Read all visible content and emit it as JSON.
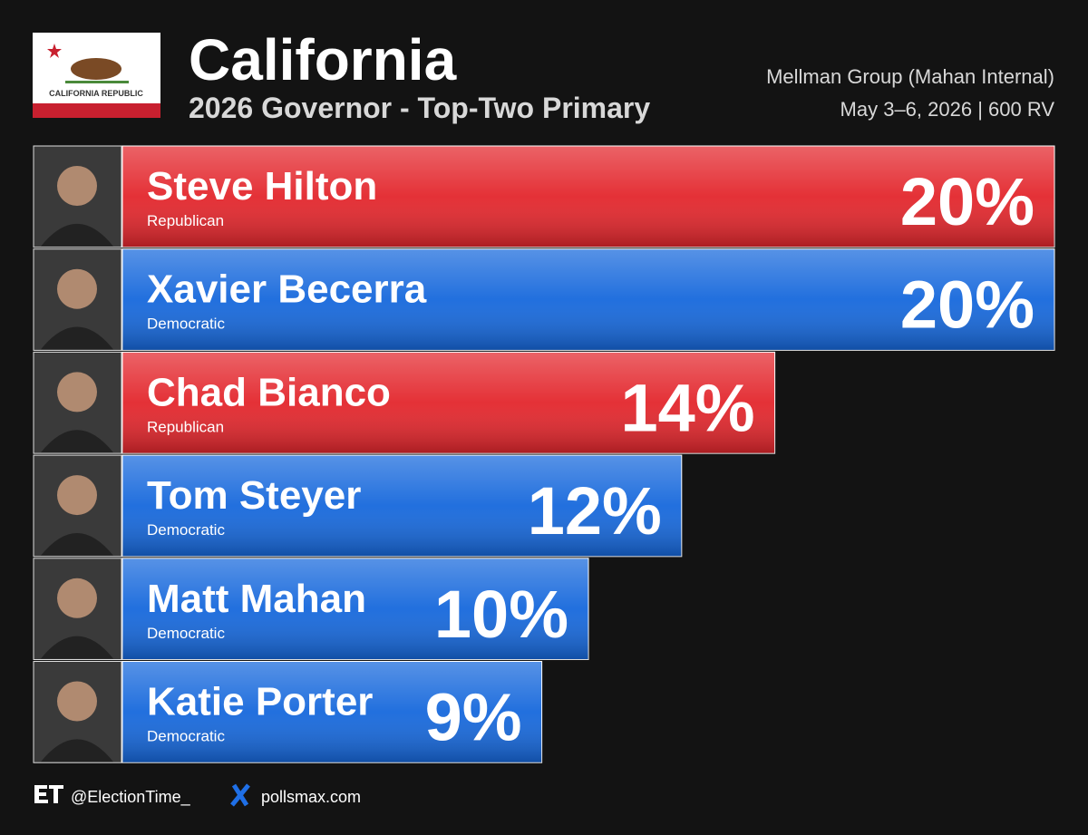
{
  "chart_data": {
    "type": "bar",
    "title": "California",
    "subtitle": "2026 Governor - Top-Two Primary",
    "pollster": "Mellman Group (Mahan Internal)",
    "poll_details": "May 3–6, 2026 | 600 RV",
    "flag_text": "CALIFORNIA REPUBLIC",
    "categories": [
      "Steve Hilton",
      "Xavier Becerra",
      "Chad Bianco",
      "Tom Steyer",
      "Matt Mahan",
      "Katie Porter"
    ],
    "parties": [
      "Republican",
      "Democratic",
      "Republican",
      "Democratic",
      "Democratic",
      "Democratic"
    ],
    "values": [
      20,
      20,
      14,
      12,
      10,
      9
    ],
    "value_labels": [
      "20%",
      "20%",
      "14%",
      "12%",
      "10%",
      "9%"
    ],
    "colors": [
      "#e3262c",
      "#1668dc",
      "#e3262c",
      "#1668dc",
      "#1668dc",
      "#1668dc"
    ],
    "footer": {
      "handle": "@ElectionTime_",
      "website": "pollsmax.com"
    }
  }
}
